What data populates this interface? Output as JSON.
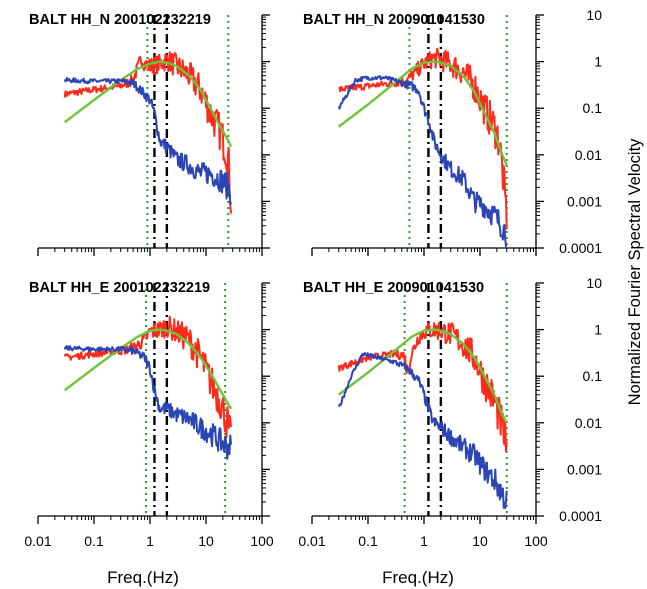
{
  "figure": {
    "x_axis_label": "Freq.(Hz)",
    "y_axis_label": "Normalized Fourier Spectral Velocity",
    "x_tick_labels": [
      "0.01",
      "0.1",
      "1",
      "10",
      "100"
    ],
    "y_tick_labels": [
      "10",
      "1",
      "0.1",
      "0.01",
      "0.001",
      "0.0001"
    ]
  },
  "colors": {
    "red_series": "#ff2a1a",
    "green_series": "#6cc43a",
    "blue_series": "#2b45b5",
    "green_dotted_lines": "#2e9a2e",
    "black_dashed_lines": "#000000"
  },
  "chart_data": [
    {
      "type": "line",
      "title": "BALT HH_N 200102232219",
      "xscale": "log",
      "yscale": "log",
      "xlim": [
        0.01,
        100
      ],
      "ylim": [
        0.0001,
        10
      ],
      "series": [
        {
          "color": "red",
          "x": [
            0.03,
            0.1,
            0.3,
            0.5,
            0.7,
            0.8,
            1,
            1.5,
            2,
            3,
            5,
            8,
            12,
            18,
            22,
            25,
            28
          ],
          "y": [
            0.2,
            0.25,
            0.3,
            0.4,
            1.2,
            0.9,
            0.8,
            0.9,
            1.1,
            0.8,
            0.5,
            0.25,
            0.08,
            0.03,
            0.015,
            0.008,
            0.001
          ]
        },
        {
          "color": "green",
          "x": [
            0.03,
            0.1,
            0.3,
            0.6,
            1,
            1.5,
            2,
            3,
            5,
            8,
            12,
            18,
            25,
            28
          ],
          "y": [
            0.05,
            0.15,
            0.4,
            0.7,
            0.9,
            1.0,
            0.95,
            0.8,
            0.5,
            0.25,
            0.1,
            0.04,
            0.02,
            0.015
          ]
        },
        {
          "color": "blue",
          "x": [
            0.03,
            0.1,
            0.3,
            0.5,
            0.8,
            1,
            1.2,
            1.5,
            2,
            3,
            5,
            8,
            12,
            18,
            25,
            28
          ],
          "y": [
            0.4,
            0.38,
            0.38,
            0.35,
            0.2,
            0.15,
            0.08,
            0.02,
            0.015,
            0.008,
            0.006,
            0.004,
            0.004,
            0.003,
            0.002,
            0.0015
          ]
        }
      ],
      "vlines_green_dotted": [
        0.9,
        25
      ],
      "vlines_black_dashdot": [
        1.2,
        2
      ]
    },
    {
      "type": "line",
      "title": "BALT HH_N 200901041530",
      "xscale": "log",
      "yscale": "log",
      "xlim": [
        0.01,
        100
      ],
      "ylim": [
        0.0001,
        10
      ],
      "series": [
        {
          "color": "red",
          "x": [
            0.03,
            0.1,
            0.3,
            0.5,
            0.8,
            1,
            1.5,
            2,
            3,
            5,
            8,
            12,
            18,
            22,
            25,
            30
          ],
          "y": [
            0.25,
            0.3,
            0.35,
            0.4,
            0.7,
            0.9,
            1.2,
            1.1,
            0.9,
            0.6,
            0.3,
            0.1,
            0.04,
            0.02,
            0.005,
            0.0005
          ]
        },
        {
          "color": "green",
          "x": [
            0.03,
            0.1,
            0.3,
            0.6,
            1,
            1.5,
            2,
            3,
            5,
            8,
            12,
            18,
            25,
            30
          ],
          "y": [
            0.04,
            0.12,
            0.35,
            0.7,
            0.95,
            1.0,
            0.95,
            0.8,
            0.5,
            0.22,
            0.08,
            0.03,
            0.01,
            0.006
          ]
        },
        {
          "color": "blue",
          "x": [
            0.03,
            0.06,
            0.1,
            0.2,
            0.4,
            0.6,
            0.8,
            1,
            1.2,
            1.5,
            2,
            3,
            5,
            8,
            12,
            18,
            25,
            30
          ],
          "y": [
            0.1,
            0.4,
            0.45,
            0.45,
            0.35,
            0.3,
            0.25,
            0.1,
            0.06,
            0.02,
            0.01,
            0.005,
            0.003,
            0.001,
            0.0008,
            0.0005,
            0.0003,
            0.0002
          ]
        }
      ],
      "vlines_green_dotted": [
        0.55,
        30
      ],
      "vlines_black_dashdot": [
        1.2,
        2
      ]
    },
    {
      "type": "line",
      "title": "BALT HH_E 200102232219",
      "xscale": "log",
      "yscale": "log",
      "xlim": [
        0.01,
        100
      ],
      "ylim": [
        0.0001,
        10
      ],
      "series": [
        {
          "color": "red",
          "x": [
            0.03,
            0.1,
            0.3,
            0.5,
            0.8,
            1,
            1.5,
            2,
            3,
            5,
            8,
            12,
            18,
            22,
            25,
            28
          ],
          "y": [
            0.25,
            0.3,
            0.35,
            0.4,
            0.6,
            0.9,
            1.0,
            1.2,
            0.9,
            0.6,
            0.25,
            0.08,
            0.03,
            0.015,
            0.008,
            0.004
          ]
        },
        {
          "color": "green",
          "x": [
            0.03,
            0.1,
            0.3,
            0.6,
            1,
            1.5,
            2,
            3,
            5,
            8,
            12,
            18,
            25,
            28
          ],
          "y": [
            0.05,
            0.15,
            0.4,
            0.7,
            0.95,
            1.0,
            0.95,
            0.8,
            0.5,
            0.25,
            0.12,
            0.05,
            0.025,
            0.02
          ]
        },
        {
          "color": "blue",
          "x": [
            0.03,
            0.1,
            0.3,
            0.5,
            0.8,
            1,
            1.2,
            1.5,
            2,
            3,
            5,
            8,
            12,
            18,
            25,
            28
          ],
          "y": [
            0.4,
            0.38,
            0.38,
            0.35,
            0.25,
            0.15,
            0.05,
            0.02,
            0.02,
            0.015,
            0.012,
            0.008,
            0.006,
            0.004,
            0.003,
            0.003
          ]
        }
      ],
      "vlines_green_dotted": [
        0.85,
        22
      ],
      "vlines_black_dashdot": [
        1.2,
        2
      ]
    },
    {
      "type": "line",
      "title": "BALT HH_E 200901041530",
      "xscale": "log",
      "yscale": "log",
      "xlim": [
        0.01,
        100
      ],
      "ylim": [
        0.0001,
        10
      ],
      "series": [
        {
          "color": "red",
          "x": [
            0.03,
            0.1,
            0.3,
            0.45,
            0.5,
            0.6,
            0.8,
            1,
            1.5,
            2,
            3,
            5,
            8,
            12,
            18,
            25,
            30
          ],
          "y": [
            0.15,
            0.25,
            0.3,
            0.28,
            0.12,
            0.3,
            0.7,
            0.9,
            1.0,
            0.95,
            0.8,
            0.5,
            0.25,
            0.08,
            0.03,
            0.008,
            0.003
          ]
        },
        {
          "color": "green",
          "x": [
            0.03,
            0.1,
            0.3,
            0.6,
            1,
            1.5,
            2,
            3,
            5,
            8,
            12,
            18,
            25,
            30
          ],
          "y": [
            0.04,
            0.12,
            0.35,
            0.7,
            0.95,
            1.0,
            0.95,
            0.8,
            0.5,
            0.25,
            0.1,
            0.04,
            0.015,
            0.01
          ]
        },
        {
          "color": "blue",
          "x": [
            0.03,
            0.05,
            0.08,
            0.15,
            0.3,
            0.5,
            0.8,
            1,
            1.2,
            1.5,
            2,
            3,
            5,
            8,
            12,
            18,
            25,
            30
          ],
          "y": [
            0.02,
            0.1,
            0.3,
            0.25,
            0.2,
            0.15,
            0.08,
            0.04,
            0.02,
            0.01,
            0.008,
            0.005,
            0.003,
            0.002,
            0.001,
            0.0006,
            0.0003,
            0.0002
          ]
        }
      ],
      "vlines_green_dotted": [
        0.45,
        30
      ],
      "vlines_black_dashdot": [
        1.2,
        2
      ]
    }
  ]
}
